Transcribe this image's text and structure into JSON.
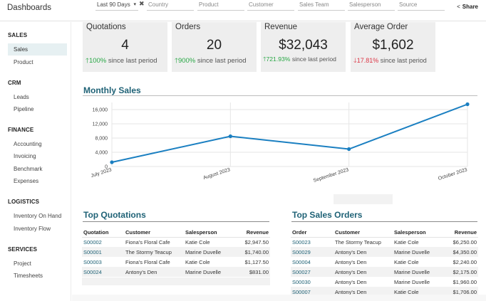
{
  "header": {
    "title": "Dashboards",
    "period": "Last 90 Days",
    "filters": [
      "Country",
      "Product",
      "Customer",
      "Sales Team",
      "Salesperson",
      "Source"
    ],
    "share": "Share"
  },
  "sidebar": {
    "sections": [
      {
        "title": "SALES",
        "items": [
          {
            "label": "Sales",
            "active": true
          },
          {
            "label": "Product"
          }
        ]
      },
      {
        "title": "CRM",
        "items": [
          {
            "label": "Leads"
          },
          {
            "label": "Pipeline"
          }
        ]
      },
      {
        "title": "FINANCE",
        "items": [
          {
            "label": "Accounting"
          },
          {
            "label": "Invoicing"
          },
          {
            "label": "Benchmark"
          },
          {
            "label": "Expenses"
          }
        ]
      },
      {
        "title": "LOGISTICS",
        "items": [
          {
            "label": "Inventory On Hand"
          },
          {
            "label": "Inventory Flow"
          }
        ]
      },
      {
        "title": "SERVICES",
        "items": [
          {
            "label": "Project"
          },
          {
            "label": "Timesheets"
          }
        ]
      }
    ]
  },
  "kpis": [
    {
      "label": "Quotations",
      "value": "4",
      "change": "100%",
      "dir": "up",
      "suffix": "since last period"
    },
    {
      "label": "Orders",
      "value": "20",
      "change": "900%",
      "dir": "up",
      "suffix": "since last period"
    },
    {
      "label": "Revenue",
      "value": "$32,043",
      "change": "721.93%",
      "dir": "up",
      "suffix": "since last period"
    },
    {
      "label": "Average Order",
      "value": "$1,602",
      "change": "17.81%",
      "dir": "down",
      "suffix": "since last period"
    }
  ],
  "colors": {
    "accent": "#1f6276",
    "line": "#1a7fc1",
    "up": "#28a745",
    "down": "#dc3545"
  },
  "monthly_sales": {
    "title": "Monthly Sales"
  },
  "chart_data": {
    "type": "line",
    "title": "",
    "categories": [
      "July 2023",
      "August 2023",
      "September 2023",
      "October 2023"
    ],
    "series": [
      {
        "values": [
          1200,
          8500,
          4900,
          17500
        ]
      }
    ],
    "ylim": [
      0,
      18000
    ],
    "yticks": [
      "0",
      "4,000",
      "8,000",
      "12,000",
      "16,000"
    ],
    "grid": true,
    "xlabel": "",
    "ylabel": ""
  },
  "top_quotations": {
    "title": "Top Quotations",
    "columns": [
      "Quotation",
      "Customer",
      "Salesperson",
      "Revenue"
    ],
    "rows": [
      [
        "S00002",
        "Fiona's Floral Cafe",
        "Katie Cole",
        "$2,947.50"
      ],
      [
        "S00001",
        "The Stormy Teacup",
        "Marine Duvelle",
        "$1,740.00"
      ],
      [
        "S00003",
        "Fiona's Floral Cafe",
        "Katie Cole",
        "$1,127.50"
      ],
      [
        "S00024",
        "Antony's Den",
        "Marine Duvelle",
        "$831.00"
      ]
    ]
  },
  "top_sales_orders": {
    "title": "Top Sales Orders",
    "columns": [
      "Order",
      "Customer",
      "Salesperson",
      "Revenue"
    ],
    "rows": [
      [
        "S00023",
        "The Stormy Teacup",
        "Katie Cole",
        "$6,250.00"
      ],
      [
        "S00029",
        "Antony's Den",
        "Marine Duvelle",
        "$4,350.00"
      ],
      [
        "S00004",
        "Antony's Den",
        "Katie Cole",
        "$2,240.00"
      ],
      [
        "S00027",
        "Antony's Den",
        "Marine Duvelle",
        "$2,175.00"
      ],
      [
        "S00030",
        "Antony's Den",
        "Marine Duvelle",
        "$1,960.00"
      ],
      [
        "S00007",
        "Antony's Den",
        "Katie Cole",
        "$1,706.00"
      ]
    ]
  }
}
